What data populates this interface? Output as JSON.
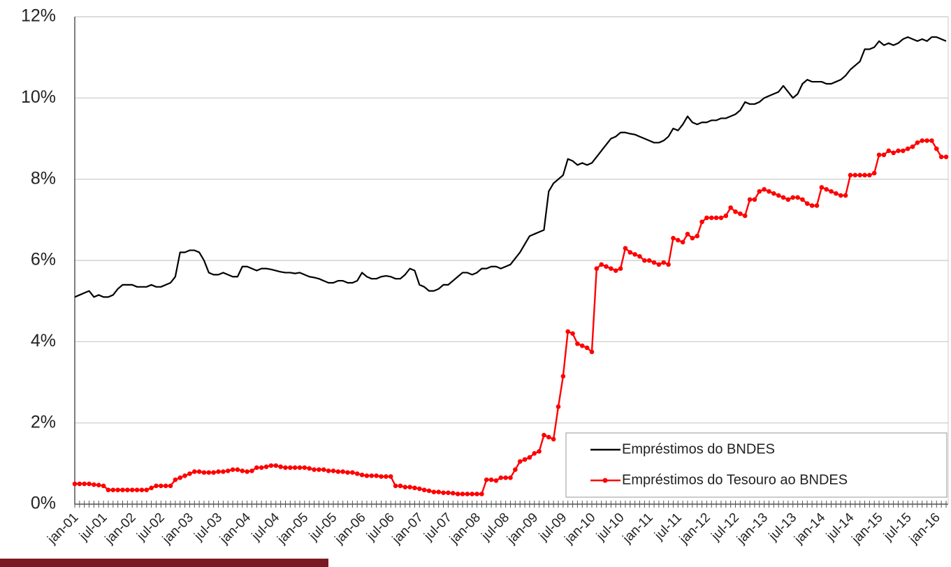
{
  "chart_data": {
    "type": "line",
    "categories": [
      "jan-01",
      null,
      null,
      null,
      null,
      null,
      "jul-01",
      null,
      null,
      null,
      null,
      null,
      "jan-02",
      null,
      null,
      null,
      null,
      null,
      "jul-02",
      null,
      null,
      null,
      null,
      null,
      "jan-03",
      null,
      null,
      null,
      null,
      null,
      "jul-03",
      null,
      null,
      null,
      null,
      null,
      "jan-04",
      null,
      null,
      null,
      null,
      null,
      "jul-04",
      null,
      null,
      null,
      null,
      null,
      "jan-05",
      null,
      null,
      null,
      null,
      null,
      "jul-05",
      null,
      null,
      null,
      null,
      null,
      "jan-06",
      null,
      null,
      null,
      null,
      null,
      "jul-06",
      null,
      null,
      null,
      null,
      null,
      "jan-07",
      null,
      null,
      null,
      null,
      null,
      "jul-07",
      null,
      null,
      null,
      null,
      null,
      "jan-08",
      null,
      null,
      null,
      null,
      null,
      "jul-08",
      null,
      null,
      null,
      null,
      null,
      "jan-09",
      null,
      null,
      null,
      null,
      null,
      "jul-09",
      null,
      null,
      null,
      null,
      null,
      "jan-10",
      null,
      null,
      null,
      null,
      null,
      "jul-10",
      null,
      null,
      null,
      null,
      null,
      "jan-11",
      null,
      null,
      null,
      null,
      null,
      "jul-11",
      null,
      null,
      null,
      null,
      null,
      "jan-12",
      null,
      null,
      null,
      null,
      null,
      "jul-12",
      null,
      null,
      null,
      null,
      null,
      "jan-13",
      null,
      null,
      null,
      null,
      null,
      "jul-13",
      null,
      null,
      null,
      null,
      null,
      "jan-14",
      null,
      null,
      null,
      null,
      null,
      "jul-14",
      null,
      null,
      null,
      null,
      null,
      "jan-15",
      null,
      null,
      null,
      null,
      null,
      "jul-15",
      null,
      null,
      null,
      null,
      null,
      "jan-16",
      null,
      null
    ],
    "series": [
      {
        "name": "Empréstimos do BNDES",
        "color": "#000000",
        "markers": false,
        "values": [
          5.1,
          5.15,
          5.2,
          5.25,
          5.1,
          5.15,
          5.1,
          5.1,
          5.15,
          5.3,
          5.4,
          5.4,
          5.4,
          5.35,
          5.35,
          5.35,
          5.4,
          5.35,
          5.35,
          5.4,
          5.45,
          5.6,
          6.2,
          6.2,
          6.25,
          6.25,
          6.2,
          6.0,
          5.7,
          5.65,
          5.65,
          5.7,
          5.65,
          5.6,
          5.6,
          5.85,
          5.85,
          5.8,
          5.75,
          5.8,
          5.8,
          5.78,
          5.75,
          5.72,
          5.7,
          5.7,
          5.68,
          5.7,
          5.65,
          5.6,
          5.58,
          5.55,
          5.5,
          5.45,
          5.45,
          5.5,
          5.5,
          5.45,
          5.45,
          5.5,
          5.7,
          5.6,
          5.55,
          5.55,
          5.6,
          5.62,
          5.6,
          5.55,
          5.55,
          5.65,
          5.8,
          5.75,
          5.4,
          5.35,
          5.25,
          5.25,
          5.3,
          5.4,
          5.4,
          5.5,
          5.6,
          5.7,
          5.7,
          5.65,
          5.7,
          5.8,
          5.8,
          5.85,
          5.85,
          5.8,
          5.85,
          5.9,
          6.05,
          6.2,
          6.4,
          6.6,
          6.65,
          6.7,
          6.75,
          7.7,
          7.9,
          8.0,
          8.1,
          8.5,
          8.45,
          8.35,
          8.4,
          8.35,
          8.4,
          8.55,
          8.7,
          8.85,
          9.0,
          9.05,
          9.15,
          9.15,
          9.12,
          9.1,
          9.05,
          9.0,
          8.95,
          8.9,
          8.9,
          8.95,
          9.05,
          9.25,
          9.2,
          9.35,
          9.55,
          9.4,
          9.35,
          9.4,
          9.4,
          9.45,
          9.45,
          9.5,
          9.5,
          9.55,
          9.6,
          9.7,
          9.9,
          9.85,
          9.85,
          9.9,
          10.0,
          10.05,
          10.1,
          10.15,
          10.3,
          10.15,
          10.0,
          10.1,
          10.35,
          10.45,
          10.4,
          10.4,
          10.4,
          10.35,
          10.35,
          10.4,
          10.45,
          10.55,
          10.7,
          10.8,
          10.9,
          11.2,
          11.2,
          11.25,
          11.4,
          11.3,
          11.35,
          11.3,
          11.35,
          11.45,
          11.5,
          11.45,
          11.4,
          11.45,
          11.4,
          11.5,
          11.5,
          11.45,
          11.4
        ]
      },
      {
        "name": "Empréstimos do Tesouro ao BNDES",
        "color": "#ff0000",
        "markers": true,
        "values": [
          0.5,
          0.5,
          0.5,
          0.5,
          0.48,
          0.47,
          0.45,
          0.35,
          0.35,
          0.35,
          0.35,
          0.35,
          0.35,
          0.35,
          0.35,
          0.35,
          0.4,
          0.45,
          0.45,
          0.45,
          0.45,
          0.6,
          0.65,
          0.7,
          0.75,
          0.8,
          0.8,
          0.78,
          0.78,
          0.78,
          0.8,
          0.8,
          0.82,
          0.85,
          0.85,
          0.82,
          0.8,
          0.82,
          0.9,
          0.9,
          0.92,
          0.95,
          0.95,
          0.92,
          0.9,
          0.9,
          0.9,
          0.9,
          0.9,
          0.88,
          0.85,
          0.85,
          0.85,
          0.82,
          0.82,
          0.8,
          0.8,
          0.78,
          0.78,
          0.75,
          0.72,
          0.7,
          0.7,
          0.7,
          0.68,
          0.68,
          0.68,
          0.45,
          0.45,
          0.42,
          0.42,
          0.4,
          0.38,
          0.35,
          0.33,
          0.3,
          0.3,
          0.28,
          0.28,
          0.27,
          0.25,
          0.25,
          0.25,
          0.25,
          0.25,
          0.25,
          0.6,
          0.6,
          0.58,
          0.65,
          0.65,
          0.65,
          0.85,
          1.05,
          1.1,
          1.15,
          1.25,
          1.3,
          1.7,
          1.65,
          1.6,
          2.4,
          3.15,
          4.25,
          4.2,
          3.95,
          3.9,
          3.85,
          3.75,
          5.8,
          5.9,
          5.85,
          5.8,
          5.75,
          5.8,
          6.3,
          6.2,
          6.15,
          6.1,
          6.0,
          6.0,
          5.95,
          5.9,
          5.95,
          5.9,
          6.55,
          6.5,
          6.45,
          6.65,
          6.55,
          6.6,
          6.95,
          7.05,
          7.05,
          7.05,
          7.05,
          7.1,
          7.3,
          7.2,
          7.15,
          7.1,
          7.5,
          7.5,
          7.7,
          7.75,
          7.7,
          7.65,
          7.6,
          7.55,
          7.5,
          7.55,
          7.55,
          7.5,
          7.4,
          7.35,
          7.35,
          7.8,
          7.75,
          7.7,
          7.65,
          7.6,
          7.6,
          8.1,
          8.1,
          8.1,
          8.1,
          8.1,
          8.15,
          8.6,
          8.6,
          8.7,
          8.65,
          8.7,
          8.7,
          8.75,
          8.8,
          8.9,
          8.95,
          8.95,
          8.95,
          8.75,
          8.55,
          8.55
        ]
      }
    ],
    "ylim": [
      0,
      12
    ],
    "yticks": [
      {
        "value": 0,
        "label": "0%"
      },
      {
        "value": 2,
        "label": "2%"
      },
      {
        "value": 4,
        "label": "4%"
      },
      {
        "value": 6,
        "label": "6%"
      },
      {
        "value": 8,
        "label": "8%"
      },
      {
        "value": 10,
        "label": "10%"
      },
      {
        "value": 12,
        "label": "12%"
      }
    ],
    "grid": true,
    "legend": "lower right"
  }
}
